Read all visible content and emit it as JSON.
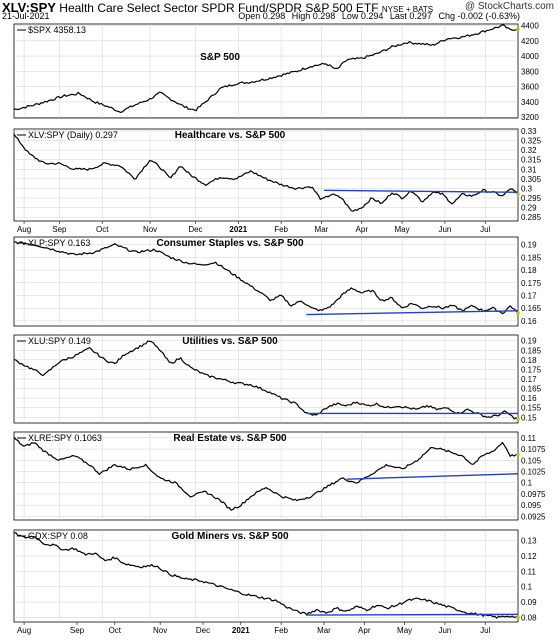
{
  "header": {
    "symbol": "XLV:SPY",
    "name": "Health Care Select Sector SPDR Fund/SPDR S&P 500 ETF",
    "exchange": "NYSE + BATS",
    "logo": "@ StockCharts.com",
    "date": "21-Jul-2021",
    "open": "Open 0.298",
    "high": "High 0.298",
    "low": "Low 0.294",
    "last": "Last 0.297",
    "chg": "Chg -0.002 (-0.63%)"
  },
  "chart_data": [
    {
      "type": "line",
      "label": "$SPX 4358.13",
      "title": "S&P 500",
      "yticks": [
        3200,
        3400,
        3600,
        3800,
        4000,
        4200,
        4400
      ],
      "ylim": [
        3190,
        4420
      ],
      "anchors": [
        [
          0,
          3300
        ],
        [
          0.04,
          3360
        ],
        [
          0.07,
          3420
        ],
        [
          0.1,
          3480
        ],
        [
          0.13,
          3510
        ],
        [
          0.16,
          3400
        ],
        [
          0.19,
          3330
        ],
        [
          0.21,
          3270
        ],
        [
          0.24,
          3360
        ],
        [
          0.27,
          3440
        ],
        [
          0.29,
          3520
        ],
        [
          0.31,
          3440
        ],
        [
          0.34,
          3330
        ],
        [
          0.36,
          3290
        ],
        [
          0.38,
          3400
        ],
        [
          0.41,
          3580
        ],
        [
          0.44,
          3640
        ],
        [
          0.47,
          3660
        ],
        [
          0.5,
          3700
        ],
        [
          0.53,
          3750
        ],
        [
          0.56,
          3800
        ],
        [
          0.59,
          3870
        ],
        [
          0.62,
          3900
        ],
        [
          0.64,
          3820
        ],
        [
          0.66,
          3950
        ],
        [
          0.69,
          3970
        ],
        [
          0.72,
          4030
        ],
        [
          0.75,
          4120
        ],
        [
          0.78,
          4180
        ],
        [
          0.81,
          4160
        ],
        [
          0.83,
          4140
        ],
        [
          0.86,
          4230
        ],
        [
          0.89,
          4250
        ],
        [
          0.92,
          4300
        ],
        [
          0.95,
          4360
        ],
        [
          0.97,
          4400
        ],
        [
          0.985,
          4340
        ],
        [
          1.0,
          4358
        ]
      ],
      "trendlines": []
    },
    {
      "type": "line",
      "label": "XLV:SPY (Daily) 0.297",
      "title": "Healthcare vs. S&P 500",
      "yticks": [
        0.285,
        0.29,
        0.295,
        0.3,
        0.305,
        0.31,
        0.315,
        0.32,
        0.325,
        0.33
      ],
      "ylim": [
        0.283,
        0.331
      ],
      "anchors": [
        [
          0,
          0.328
        ],
        [
          0.03,
          0.318
        ],
        [
          0.06,
          0.313
        ],
        [
          0.09,
          0.313
        ],
        [
          0.12,
          0.31
        ],
        [
          0.15,
          0.31
        ],
        [
          0.18,
          0.313
        ],
        [
          0.21,
          0.312
        ],
        [
          0.24,
          0.305
        ],
        [
          0.27,
          0.315
        ],
        [
          0.29,
          0.311
        ],
        [
          0.31,
          0.305
        ],
        [
          0.33,
          0.312
        ],
        [
          0.35,
          0.307
        ],
        [
          0.38,
          0.302
        ],
        [
          0.41,
          0.306
        ],
        [
          0.44,
          0.305
        ],
        [
          0.47,
          0.309
        ],
        [
          0.5,
          0.305
        ],
        [
          0.53,
          0.302
        ],
        [
          0.56,
          0.3
        ],
        [
          0.59,
          0.301
        ],
        [
          0.61,
          0.294
        ],
        [
          0.63,
          0.297
        ],
        [
          0.65,
          0.295
        ],
        [
          0.67,
          0.288
        ],
        [
          0.69,
          0.29
        ],
        [
          0.71,
          0.295
        ],
        [
          0.73,
          0.292
        ],
        [
          0.75,
          0.298
        ],
        [
          0.77,
          0.295
        ],
        [
          0.79,
          0.299
        ],
        [
          0.81,
          0.293
        ],
        [
          0.83,
          0.298
        ],
        [
          0.85,
          0.297
        ],
        [
          0.87,
          0.292
        ],
        [
          0.89,
          0.297
        ],
        [
          0.91,
          0.296
        ],
        [
          0.93,
          0.299
        ],
        [
          0.95,
          0.298
        ],
        [
          0.97,
          0.296
        ],
        [
          0.985,
          0.3
        ],
        [
          1.0,
          0.297
        ]
      ],
      "trendlines": [
        [
          0.615,
          0.299,
          1.0,
          0.298
        ]
      ]
    },
    {
      "type": "line",
      "label": "XLP:SPY 0.163",
      "title": "Consumer Staples vs. S&P 500",
      "yticks": [
        0.16,
        0.165,
        0.17,
        0.175,
        0.18,
        0.185,
        0.19
      ],
      "ylim": [
        0.158,
        0.193
      ],
      "anchors": [
        [
          0,
          0.191
        ],
        [
          0.04,
          0.19
        ],
        [
          0.08,
          0.188
        ],
        [
          0.12,
          0.186
        ],
        [
          0.16,
          0.187
        ],
        [
          0.2,
          0.19
        ],
        [
          0.24,
          0.187
        ],
        [
          0.28,
          0.188
        ],
        [
          0.31,
          0.185
        ],
        [
          0.34,
          0.183
        ],
        [
          0.37,
          0.182
        ],
        [
          0.4,
          0.183
        ],
        [
          0.43,
          0.179
        ],
        [
          0.46,
          0.175
        ],
        [
          0.49,
          0.171
        ],
        [
          0.51,
          0.168
        ],
        [
          0.53,
          0.17
        ],
        [
          0.55,
          0.166
        ],
        [
          0.57,
          0.168
        ],
        [
          0.59,
          0.165
        ],
        [
          0.61,
          0.164
        ],
        [
          0.63,
          0.166
        ],
        [
          0.65,
          0.17
        ],
        [
          0.67,
          0.173
        ],
        [
          0.69,
          0.171
        ],
        [
          0.71,
          0.172
        ],
        [
          0.73,
          0.168
        ],
        [
          0.75,
          0.169
        ],
        [
          0.77,
          0.165
        ],
        [
          0.79,
          0.167
        ],
        [
          0.81,
          0.165
        ],
        [
          0.83,
          0.166
        ],
        [
          0.85,
          0.165
        ],
        [
          0.87,
          0.166
        ],
        [
          0.89,
          0.164
        ],
        [
          0.91,
          0.166
        ],
        [
          0.93,
          0.164
        ],
        [
          0.95,
          0.165
        ],
        [
          0.97,
          0.163
        ],
        [
          0.985,
          0.166
        ],
        [
          1.0,
          0.163
        ]
      ],
      "trendlines": [
        [
          0.58,
          0.1625,
          1.0,
          0.164
        ]
      ]
    },
    {
      "type": "line",
      "label": "XLU:SPY 0.149",
      "title": "Utilities vs. S&P 500",
      "yticks": [
        0.15,
        0.155,
        0.16,
        0.165,
        0.17,
        0.175,
        0.18,
        0.185,
        0.19
      ],
      "ylim": [
        0.147,
        0.193
      ],
      "anchors": [
        [
          0,
          0.18
        ],
        [
          0.03,
          0.176
        ],
        [
          0.06,
          0.172
        ],
        [
          0.09,
          0.179
        ],
        [
          0.12,
          0.182
        ],
        [
          0.15,
          0.186
        ],
        [
          0.18,
          0.18
        ],
        [
          0.2,
          0.178
        ],
        [
          0.22,
          0.183
        ],
        [
          0.25,
          0.187
        ],
        [
          0.27,
          0.19
        ],
        [
          0.29,
          0.185
        ],
        [
          0.31,
          0.178
        ],
        [
          0.33,
          0.181
        ],
        [
          0.35,
          0.176
        ],
        [
          0.38,
          0.172
        ],
        [
          0.41,
          0.17
        ],
        [
          0.44,
          0.168
        ],
        [
          0.47,
          0.167
        ],
        [
          0.5,
          0.164
        ],
        [
          0.53,
          0.16
        ],
        [
          0.56,
          0.157
        ],
        [
          0.58,
          0.152
        ],
        [
          0.6,
          0.151
        ],
        [
          0.62,
          0.155
        ],
        [
          0.64,
          0.157
        ],
        [
          0.66,
          0.156
        ],
        [
          0.68,
          0.158
        ],
        [
          0.7,
          0.156
        ],
        [
          0.72,
          0.157
        ],
        [
          0.74,
          0.155
        ],
        [
          0.76,
          0.156
        ],
        [
          0.78,
          0.155
        ],
        [
          0.8,
          0.154
        ],
        [
          0.82,
          0.156
        ],
        [
          0.84,
          0.154
        ],
        [
          0.86,
          0.155
        ],
        [
          0.88,
          0.152
        ],
        [
          0.9,
          0.154
        ],
        [
          0.92,
          0.152
        ],
        [
          0.94,
          0.15
        ],
        [
          0.96,
          0.151
        ],
        [
          0.975,
          0.153
        ],
        [
          0.99,
          0.15
        ],
        [
          1.0,
          0.149
        ]
      ],
      "trendlines": [
        [
          0.58,
          0.152,
          1.0,
          0.152
        ]
      ]
    },
    {
      "type": "line",
      "label": "XLRE:SPY 0.1063",
      "title": "Real Estate vs. S&P 500",
      "yticks": [
        0.0925,
        0.095,
        0.0975,
        0.1,
        0.1025,
        0.105,
        0.1075,
        0.11
      ],
      "ylim": [
        0.0917,
        0.1113
      ],
      "anchors": [
        [
          0,
          0.11
        ],
        [
          0.02,
          0.108
        ],
        [
          0.04,
          0.109
        ],
        [
          0.06,
          0.107
        ],
        [
          0.09,
          0.105
        ],
        [
          0.12,
          0.106
        ],
        [
          0.15,
          0.104
        ],
        [
          0.17,
          0.102
        ],
        [
          0.2,
          0.104
        ],
        [
          0.23,
          0.103
        ],
        [
          0.26,
          0.104
        ],
        [
          0.29,
          0.101
        ],
        [
          0.32,
          0.1
        ],
        [
          0.35,
          0.097
        ],
        [
          0.38,
          0.098
        ],
        [
          0.41,
          0.096
        ],
        [
          0.43,
          0.094
        ],
        [
          0.45,
          0.095
        ],
        [
          0.47,
          0.097
        ],
        [
          0.5,
          0.099
        ],
        [
          0.53,
          0.097
        ],
        [
          0.56,
          0.096
        ],
        [
          0.59,
          0.097
        ],
        [
          0.62,
          0.099
        ],
        [
          0.65,
          0.101
        ],
        [
          0.68,
          0.1
        ],
        [
          0.71,
          0.102
        ],
        [
          0.74,
          0.104
        ],
        [
          0.77,
          0.103
        ],
        [
          0.8,
          0.105
        ],
        [
          0.83,
          0.108
        ],
        [
          0.86,
          0.107
        ],
        [
          0.89,
          0.106
        ],
        [
          0.91,
          0.104
        ],
        [
          0.93,
          0.106
        ],
        [
          0.95,
          0.107
        ],
        [
          0.97,
          0.109
        ],
        [
          0.985,
          0.106
        ],
        [
          1.0,
          0.1063
        ]
      ],
      "trendlines": [
        [
          0.66,
          0.1008,
          1.0,
          0.102
        ]
      ]
    },
    {
      "type": "line",
      "label": "GDX:SPY 0.08",
      "title": "Gold Miners vs. S&P 500",
      "yticks": [
        0.08,
        0.09,
        0.1,
        0.11,
        0.12,
        0.13
      ],
      "ylim": [
        0.077,
        0.137
      ],
      "anchors": [
        [
          0,
          0.135
        ],
        [
          0.02,
          0.132
        ],
        [
          0.04,
          0.133
        ],
        [
          0.06,
          0.128
        ],
        [
          0.08,
          0.127
        ],
        [
          0.1,
          0.124
        ],
        [
          0.12,
          0.125
        ],
        [
          0.14,
          0.121
        ],
        [
          0.16,
          0.122
        ],
        [
          0.18,
          0.117
        ],
        [
          0.2,
          0.119
        ],
        [
          0.22,
          0.115
        ],
        [
          0.25,
          0.113
        ],
        [
          0.28,
          0.114
        ],
        [
          0.31,
          0.108
        ],
        [
          0.34,
          0.105
        ],
        [
          0.37,
          0.104
        ],
        [
          0.4,
          0.101
        ],
        [
          0.43,
          0.098
        ],
        [
          0.46,
          0.095
        ],
        [
          0.49,
          0.093
        ],
        [
          0.52,
          0.091
        ],
        [
          0.54,
          0.087
        ],
        [
          0.56,
          0.084
        ],
        [
          0.58,
          0.082
        ],
        [
          0.6,
          0.085
        ],
        [
          0.62,
          0.083
        ],
        [
          0.64,
          0.086
        ],
        [
          0.66,
          0.084
        ],
        [
          0.68,
          0.087
        ],
        [
          0.7,
          0.085
        ],
        [
          0.72,
          0.088
        ],
        [
          0.74,
          0.086
        ],
        [
          0.76,
          0.088
        ],
        [
          0.78,
          0.091
        ],
        [
          0.8,
          0.092
        ],
        [
          0.82,
          0.091
        ],
        [
          0.84,
          0.089
        ],
        [
          0.86,
          0.087
        ],
        [
          0.88,
          0.085
        ],
        [
          0.9,
          0.083
        ],
        [
          0.92,
          0.082
        ],
        [
          0.94,
          0.081
        ],
        [
          0.96,
          0.08
        ],
        [
          0.98,
          0.081
        ],
        [
          1.0,
          0.08
        ]
      ],
      "trendlines": [
        [
          0.58,
          0.0815,
          1.0,
          0.082
        ]
      ]
    }
  ],
  "xaxis_top": [
    {
      "label": "Aug",
      "pos": 0.02,
      "bold": false
    },
    {
      "label": "Sep",
      "pos": 0.09,
      "bold": false
    },
    {
      "label": "Oct",
      "pos": 0.175,
      "bold": false
    },
    {
      "label": "Nov",
      "pos": 0.27,
      "bold": false
    },
    {
      "label": "Dec",
      "pos": 0.36,
      "bold": false
    },
    {
      "label": "2021",
      "pos": 0.445,
      "bold": true
    },
    {
      "label": "Feb",
      "pos": 0.53,
      "bold": false
    },
    {
      "label": "Mar",
      "pos": 0.61,
      "bold": false
    },
    {
      "label": "Apr",
      "pos": 0.69,
      "bold": false
    },
    {
      "label": "May",
      "pos": 0.77,
      "bold": false
    },
    {
      "label": "Jun",
      "pos": 0.855,
      "bold": false
    },
    {
      "label": "Jul",
      "pos": 0.935,
      "bold": false
    }
  ],
  "xaxis_bottom": [
    {
      "label": "Aug",
      "pos": 0.02,
      "bold": false
    },
    {
      "label": "Sep",
      "pos": 0.125,
      "bold": false
    },
    {
      "label": "Oct",
      "pos": 0.2,
      "bold": false
    },
    {
      "label": "Nov",
      "pos": 0.29,
      "bold": false
    },
    {
      "label": "Dec",
      "pos": 0.375,
      "bold": false
    },
    {
      "label": "2021",
      "pos": 0.45,
      "bold": true
    },
    {
      "label": "Feb",
      "pos": 0.53,
      "bold": false
    },
    {
      "label": "Mar",
      "pos": 0.615,
      "bold": false
    },
    {
      "label": "Apr",
      "pos": 0.695,
      "bold": false
    },
    {
      "label": "May",
      "pos": 0.775,
      "bold": false
    },
    {
      "label": "Jun",
      "pos": 0.855,
      "bold": false
    },
    {
      "label": "Jul",
      "pos": 0.935,
      "bold": false
    }
  ],
  "colors": {
    "line": "#000000",
    "trend": "#1f3fd8",
    "grid": "#d0d0d0",
    "last": "#c9c400"
  }
}
